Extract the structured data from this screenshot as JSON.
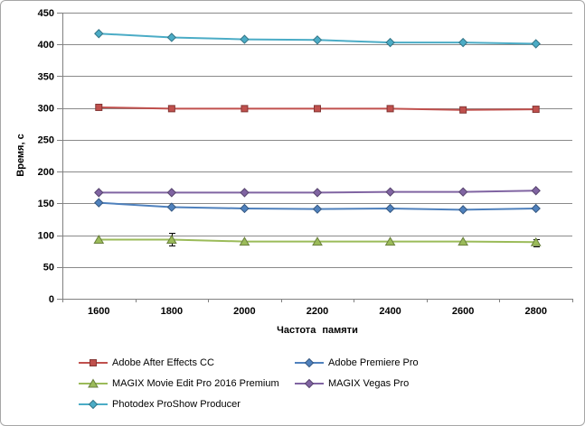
{
  "chart": {
    "background_color": "#FFFFFF",
    "border_color": "#A6A6A6",
    "gridline_color": "#8A8A8A",
    "axis_color": "#808080",
    "error_bar_color": "#000000"
  },
  "chart_data": {
    "type": "line",
    "title": "",
    "xlabel": "Частота памяти",
    "ylabel": "Время, с",
    "x_categories": [
      "1600",
      "1800",
      "2000",
      "2200",
      "2400",
      "2600",
      "2800"
    ],
    "y_ticks": [
      0,
      50,
      100,
      150,
      200,
      250,
      300,
      350,
      400,
      450
    ],
    "ylim": [
      0,
      450
    ],
    "grid": true,
    "legend_position": "bottom",
    "legend_columns": 2,
    "series": [
      {
        "name": "Adobe After Effects CC",
        "color": "#C0504D",
        "marker": "square",
        "values": [
          301,
          299,
          299,
          299,
          299,
          297,
          298
        ]
      },
      {
        "name": "Adobe Premiere Pro",
        "color": "#4F81BD",
        "marker": "diamond",
        "values": [
          151,
          144,
          142,
          141,
          142,
          140,
          142
        ]
      },
      {
        "name": "MAGIX Movie Edit Pro 2016 Premium",
        "color": "#9BBB59",
        "marker": "triangle",
        "values": [
          93,
          93,
          90,
          90,
          90,
          90,
          89
        ]
      },
      {
        "name": "MAGIX Vegas Pro",
        "color": "#8064A2",
        "marker": "diamond",
        "values": [
          167,
          167,
          167,
          167,
          168,
          168,
          170
        ]
      },
      {
        "name": "Photodex ProShow Producer",
        "color": "#4BACC6",
        "marker": "diamond",
        "values": [
          417,
          411,
          408,
          407,
          403,
          403,
          401
        ]
      }
    ],
    "error_bars": [
      {
        "series": "MAGIX Movie Edit Pro 2016 Premium",
        "x": "1800",
        "low": 84,
        "high": 103
      },
      {
        "series": "MAGIX Movie Edit Pro 2016 Premium",
        "x": "2800",
        "low": 83,
        "high": 93
      }
    ]
  }
}
